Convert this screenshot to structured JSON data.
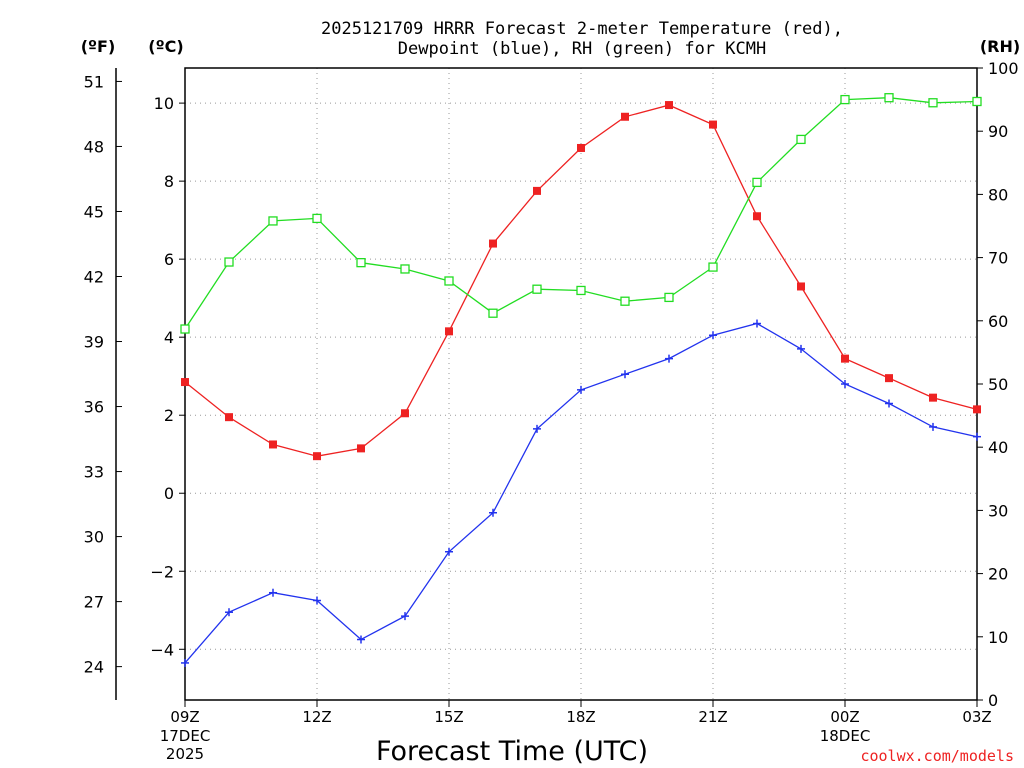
{
  "chart_data": {
    "type": "line",
    "title_lines": [
      "2025121709 HRRR Forecast 2-meter Temperature (red),",
      "Dewpoint (blue), RH (green) for KCMH"
    ],
    "xlabel": "Forecast Time (UTC)",
    "x_hours": [
      9,
      10,
      11,
      12,
      13,
      14,
      15,
      16,
      17,
      18,
      19,
      20,
      21,
      22,
      23,
      24,
      25,
      26,
      27
    ],
    "x_ticks": [
      {
        "hour": 9,
        "label": "09Z",
        "sub": [
          "17DEC",
          "2025"
        ]
      },
      {
        "hour": 12,
        "label": "12Z",
        "sub": []
      },
      {
        "hour": 15,
        "label": "15Z",
        "sub": []
      },
      {
        "hour": 18,
        "label": "18Z",
        "sub": []
      },
      {
        "hour": 21,
        "label": "21Z",
        "sub": []
      },
      {
        "hour": 24,
        "label": "00Z",
        "sub": [
          "18DEC"
        ]
      },
      {
        "hour": 27,
        "label": "03Z",
        "sub": []
      }
    ],
    "axes": {
      "celsius": {
        "unit_label": "(ºC)",
        "range": [
          -5.3,
          10.9
        ],
        "ticks": [
          -4,
          -2,
          0,
          2,
          4,
          6,
          8,
          10
        ]
      },
      "fahrenheit": {
        "unit_label": "(ºF)",
        "ticks": [
          24,
          27,
          30,
          33,
          36,
          39,
          42,
          45,
          48,
          51
        ]
      },
      "rh": {
        "unit_label": "(RH)",
        "range": [
          0,
          100
        ],
        "ticks": [
          0,
          10,
          20,
          30,
          40,
          50,
          60,
          70,
          80,
          90,
          100
        ]
      }
    },
    "series": [
      {
        "name": "Temperature",
        "unit": "C",
        "color": "#ee2222",
        "marker": "filled-square",
        "values": [
          2.85,
          1.95,
          1.25,
          0.95,
          1.15,
          2.05,
          4.15,
          6.4,
          7.75,
          8.85,
          9.65,
          9.95,
          9.45,
          7.1,
          5.3,
          3.45,
          2.95,
          2.45,
          2.15
        ]
      },
      {
        "name": "Dewpoint",
        "unit": "C",
        "color": "#2233ee",
        "marker": "plus",
        "values": [
          -4.35,
          -3.05,
          -2.55,
          -2.75,
          -3.75,
          -3.15,
          -1.5,
          -0.5,
          1.65,
          2.65,
          3.05,
          3.45,
          4.05,
          4.35,
          3.7,
          2.8,
          2.3,
          1.7,
          1.45
        ]
      },
      {
        "name": "RH",
        "unit": "%",
        "color": "#22dd22",
        "marker": "open-square",
        "values": [
          58.7,
          69.3,
          75.8,
          76.2,
          69.2,
          68.2,
          66.3,
          61.2,
          65.0,
          64.8,
          63.1,
          63.7,
          68.5,
          81.9,
          88.7,
          95.0,
          95.3,
          94.5,
          94.7
        ]
      }
    ]
  },
  "credit": "coolwx.com/models"
}
